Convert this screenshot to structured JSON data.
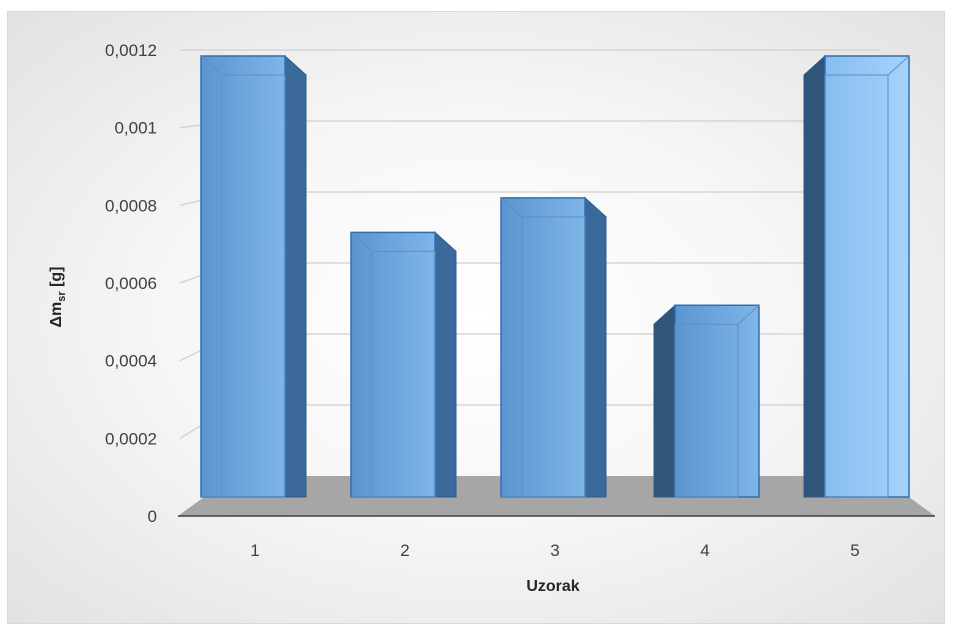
{
  "chart_data": {
    "type": "bar",
    "categories": [
      "1",
      "2",
      "3",
      "4",
      "5"
    ],
    "values": [
      0.00115,
      0.00069,
      0.00078,
      0.0005,
      0.00115
    ],
    "xlabel": "Uzorak",
    "ylabel": {
      "base": "Δm",
      "sub": "sr",
      "unit": " [g]"
    },
    "ylim": [
      0,
      0.0012
    ],
    "y_ticks": [
      "0",
      "0,0002",
      "0,0004",
      "0,0006",
      "0,0008",
      "0,001",
      "0,0012"
    ],
    "grid": true,
    "style": "3d-column",
    "bar_color": "#5b9bd5"
  }
}
